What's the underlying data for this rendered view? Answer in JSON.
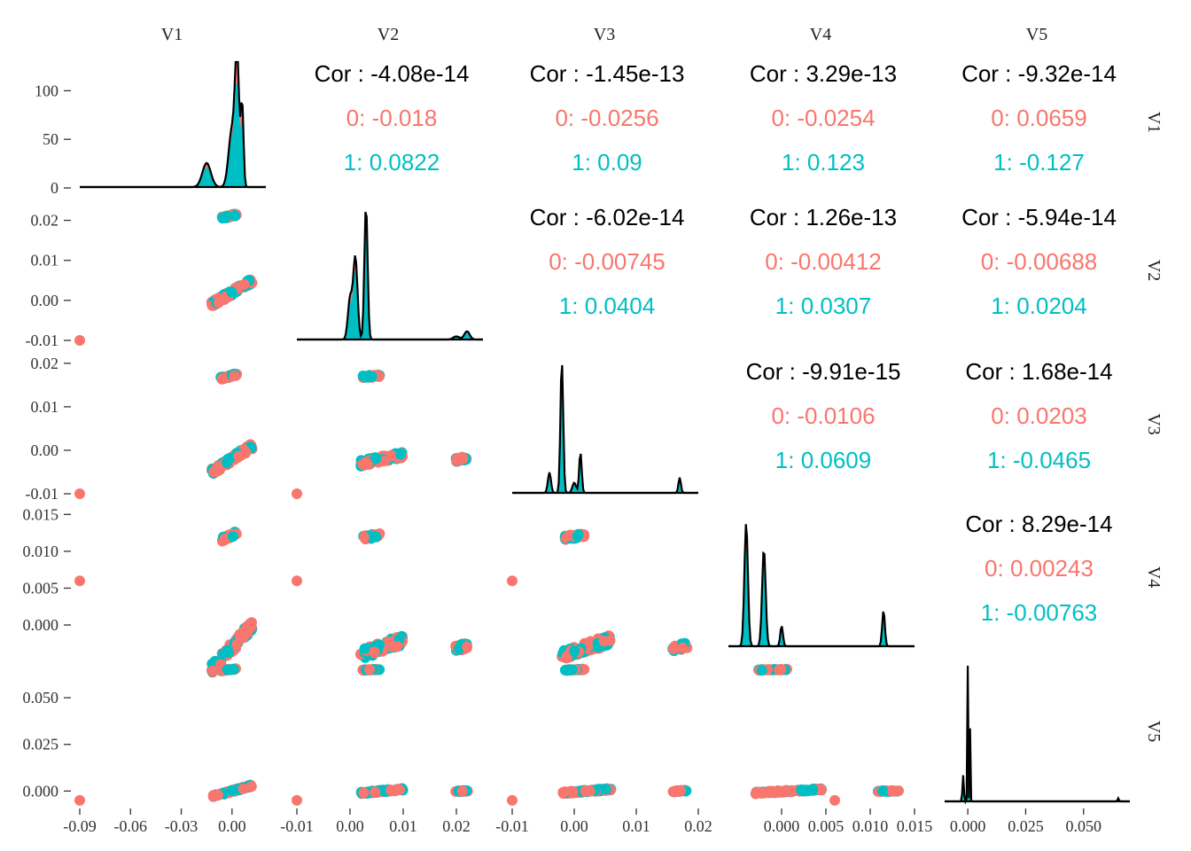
{
  "chart_data": {
    "type": "scatter",
    "variables": [
      "V1",
      "V2",
      "V3",
      "V4",
      "V5"
    ],
    "groups": [
      "0",
      "1"
    ],
    "colors": {
      "0": "#F8766D",
      "1": "#00BFC4",
      "density_line": "#000000",
      "cor_total": "#000000"
    },
    "x_axis": [
      {
        "var": "V1",
        "range": [
          -0.09,
          0.02
        ],
        "ticks": [
          -0.09,
          -0.06,
          -0.03,
          0.0
        ],
        "tick_labels": [
          "-0.09",
          "-0.06",
          "-0.03",
          "0.00"
        ]
      },
      {
        "var": "V2",
        "range": [
          -0.01,
          0.025
        ],
        "ticks": [
          -0.01,
          0.0,
          0.01,
          0.02
        ],
        "tick_labels": [
          "-0.01",
          "0.00",
          "0.01",
          "0.02"
        ]
      },
      {
        "var": "V3",
        "range": [
          -0.01,
          0.02
        ],
        "ticks": [
          -0.01,
          0.0,
          0.01,
          0.02
        ],
        "tick_labels": [
          "-0.01",
          "0.00",
          "0.01",
          "0.02"
        ]
      },
      {
        "var": "V4",
        "range": [
          -0.006,
          0.015
        ],
        "ticks": [
          0.0,
          0.005,
          0.01,
          0.015
        ],
        "tick_labels": [
          "0.000",
          "0.005",
          "0.010",
          "0.015"
        ]
      },
      {
        "var": "V5",
        "range": [
          -0.01,
          0.07
        ],
        "ticks": [
          0.0,
          0.025,
          0.05
        ],
        "tick_labels": [
          "0.000",
          "0.025",
          "0.050"
        ]
      }
    ],
    "y_axis": [
      {
        "var": "V1",
        "range": [
          0,
          135
        ],
        "ticks": [
          0,
          50,
          100
        ],
        "tick_labels": [
          "0",
          "50",
          "100"
        ]
      },
      {
        "var": "V2",
        "range": [
          -0.01,
          0.025
        ],
        "ticks": [
          -0.01,
          0.0,
          0.01,
          0.02
        ],
        "tick_labels": [
          "-0.01",
          "0.00",
          "0.01",
          "0.02"
        ]
      },
      {
        "var": "V3",
        "range": [
          -0.01,
          0.022
        ],
        "ticks": [
          -0.01,
          0.0,
          0.01,
          0.02
        ],
        "tick_labels": [
          "-0.01",
          "0.00",
          "0.01",
          "0.02"
        ]
      },
      {
        "var": "V4",
        "range": [
          -0.003,
          0.016
        ],
        "ticks": [
          0.0,
          0.005,
          0.01,
          0.015
        ],
        "tick_labels": [
          "0.000",
          "0.005",
          "0.010",
          "0.015"
        ]
      },
      {
        "var": "V5",
        "range": [
          -0.006,
          0.07
        ],
        "ticks": [
          0.0,
          0.025,
          0.05
        ],
        "tick_labels": [
          "0.000",
          "0.025",
          "0.050"
        ]
      }
    ],
    "correlations": [
      {
        "row": 0,
        "col": 1,
        "total": "Cor : -4.08e-14",
        "g0": "0: -0.018",
        "g1": "1: 0.0822"
      },
      {
        "row": 0,
        "col": 2,
        "total": "Cor : -1.45e-13",
        "g0": "0: -0.0256",
        "g1": "1: 0.09"
      },
      {
        "row": 0,
        "col": 3,
        "total": "Cor : 3.29e-13",
        "g0": "0: -0.0254",
        "g1": "1: 0.123"
      },
      {
        "row": 0,
        "col": 4,
        "total": "Cor : -9.32e-14",
        "g0": "0: 0.0659",
        "g1": "1: -0.127"
      },
      {
        "row": 1,
        "col": 2,
        "total": "Cor : -6.02e-14",
        "g0": "0: -0.00745",
        "g1": "1: 0.0404"
      },
      {
        "row": 1,
        "col": 3,
        "total": "Cor : 1.26e-13",
        "g0": "0: -0.00412",
        "g1": "1: 0.0307"
      },
      {
        "row": 1,
        "col": 4,
        "total": "Cor : -5.94e-14",
        "g0": "0: -0.00688",
        "g1": "1: 0.0204"
      },
      {
        "row": 2,
        "col": 3,
        "total": "Cor : -9.91e-15",
        "g0": "0: -0.0106",
        "g1": "1: 0.0609"
      },
      {
        "row": 2,
        "col": 4,
        "total": "Cor : 1.68e-14",
        "g0": "0: 0.0203",
        "g1": "1: -0.0465"
      },
      {
        "row": 3,
        "col": 4,
        "total": "Cor : 8.29e-14",
        "g0": "0: 0.00243",
        "g1": "1: -0.00763"
      }
    ],
    "densities": [
      {
        "var": "V1",
        "peak_x": [
          -0.015,
          0.0,
          0.003,
          0.006
        ],
        "peak_height": [
          25,
          60,
          130,
          85
        ]
      },
      {
        "var": "V2",
        "peak_x": [
          0.0,
          0.001,
          0.003,
          0.02,
          0.022
        ],
        "peak_height": [
          40,
          80,
          130,
          3,
          8
        ]
      },
      {
        "var": "V3",
        "peak_x": [
          -0.004,
          -0.002,
          0.0,
          0.001,
          0.017
        ],
        "peak_height": [
          20,
          130,
          10,
          40,
          15
        ]
      },
      {
        "var": "V4",
        "peak_x": [
          -0.004,
          -0.002,
          0.0,
          0.0115
        ],
        "peak_height": [
          120,
          95,
          20,
          35
        ]
      },
      {
        "var": "V5",
        "peak_x": [
          -0.002,
          0.0,
          0.001,
          0.065
        ],
        "peak_height": [
          25,
          130,
          70,
          3
        ]
      }
    ],
    "outlier_group0": {
      "V1": -0.09,
      "V2": -0.01,
      "V3": -0.01,
      "V4": 0.006,
      "V5": -0.005
    },
    "legend": "none",
    "grid": false
  }
}
